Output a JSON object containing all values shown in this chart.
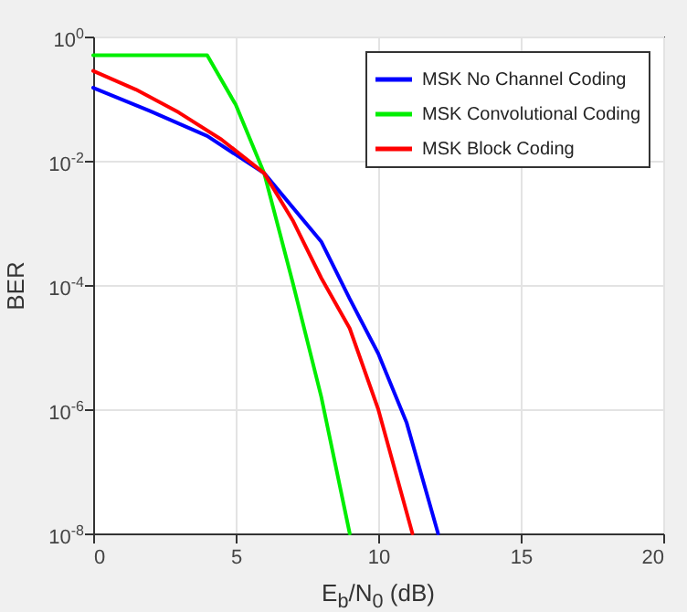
{
  "chart_data": {
    "type": "line",
    "xlabel": "E$_{b}$/N$_{0}$ (dB)",
    "ylabel": "BER",
    "log": "y",
    "grid": true,
    "legend": "top right",
    "xlim": [
      0,
      20
    ],
    "xticks": [
      0,
      5,
      10,
      15,
      20
    ],
    "ylim": [
      1e-08,
      1
    ],
    "yticks": [
      {
        "value": 1,
        "label": "10$^{0}$"
      },
      {
        "value": 0.01,
        "label": "10$^{-2}$"
      },
      {
        "value": 0.0001,
        "label": "10$^{-4}$"
      },
      {
        "value": 1e-06,
        "label": "10$^{-6}$"
      },
      {
        "value": 1e-08,
        "label": "10$^{-8}$"
      }
    ],
    "series": [
      {
        "name": "MSK No Channel Coding",
        "color": "#0000ff",
        "x": [
          0,
          2,
          4,
          6,
          8,
          9,
          10,
          11,
          12.1
        ],
        "values": [
          0.15,
          0.063,
          0.025,
          0.0063,
          0.0005,
          6e-05,
          7.9e-06,
          6e-07,
          1e-08
        ]
      },
      {
        "name": "MSK Convolutional Coding",
        "color": "#00ee00",
        "x": [
          0,
          4,
          5,
          6,
          7,
          8,
          9
        ],
        "values": [
          0.5,
          0.5,
          0.08,
          0.0063,
          0.00011,
          1.6e-06,
          1e-08
        ]
      },
      {
        "name": "MSK Block Coding",
        "color": "#ff0000",
        "x": [
          0,
          1.5,
          3,
          4.5,
          6,
          7,
          8,
          9,
          10,
          11.2
        ],
        "values": [
          0.28,
          0.14,
          0.06,
          0.022,
          0.0063,
          0.0011,
          0.00013,
          2e-05,
          1e-06,
          1e-08
        ]
      }
    ]
  }
}
